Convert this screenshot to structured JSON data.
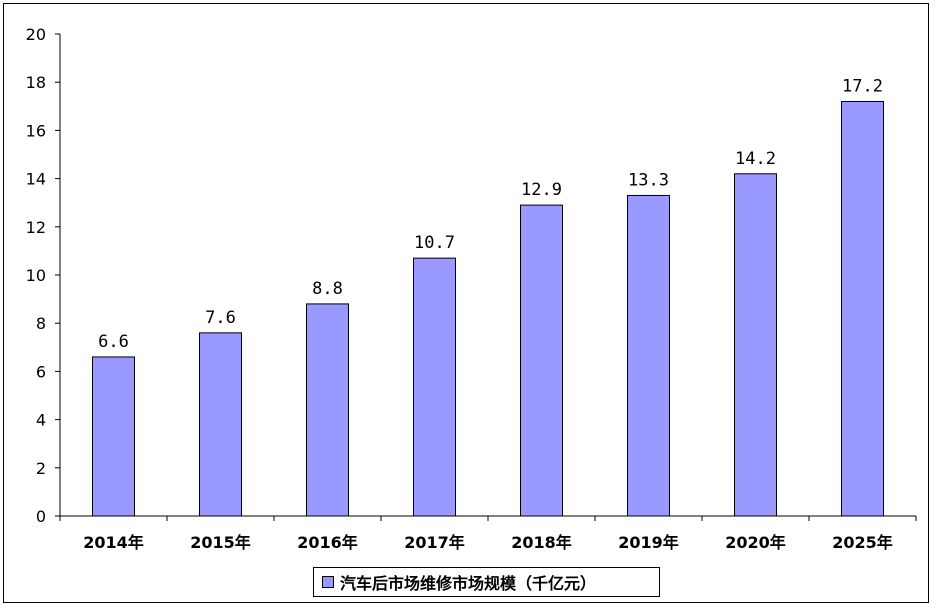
{
  "chart_data": {
    "type": "bar",
    "categories": [
      "2014年",
      "2015年",
      "2016年",
      "2017年",
      "2018年",
      "2019年",
      "2020年",
      "2025年"
    ],
    "series": [
      {
        "name": "汽车后市场维修市场规模（千亿元）",
        "values": [
          6.6,
          7.6,
          8.8,
          10.7,
          12.9,
          13.3,
          14.2,
          17.2
        ],
        "labels": [
          "6.6",
          "7.6",
          "8.8",
          "10.7",
          "12.9",
          "13.3",
          "14.2",
          "17.2"
        ]
      }
    ],
    "ylim": [
      0,
      20
    ],
    "yticks": [
      0,
      2,
      4,
      6,
      8,
      10,
      12,
      14,
      16,
      18,
      20
    ],
    "grid": false,
    "legend_position": "bottom",
    "colors": {
      "bar_fill": "#9999FF",
      "bar_stroke": "#000000"
    }
  }
}
